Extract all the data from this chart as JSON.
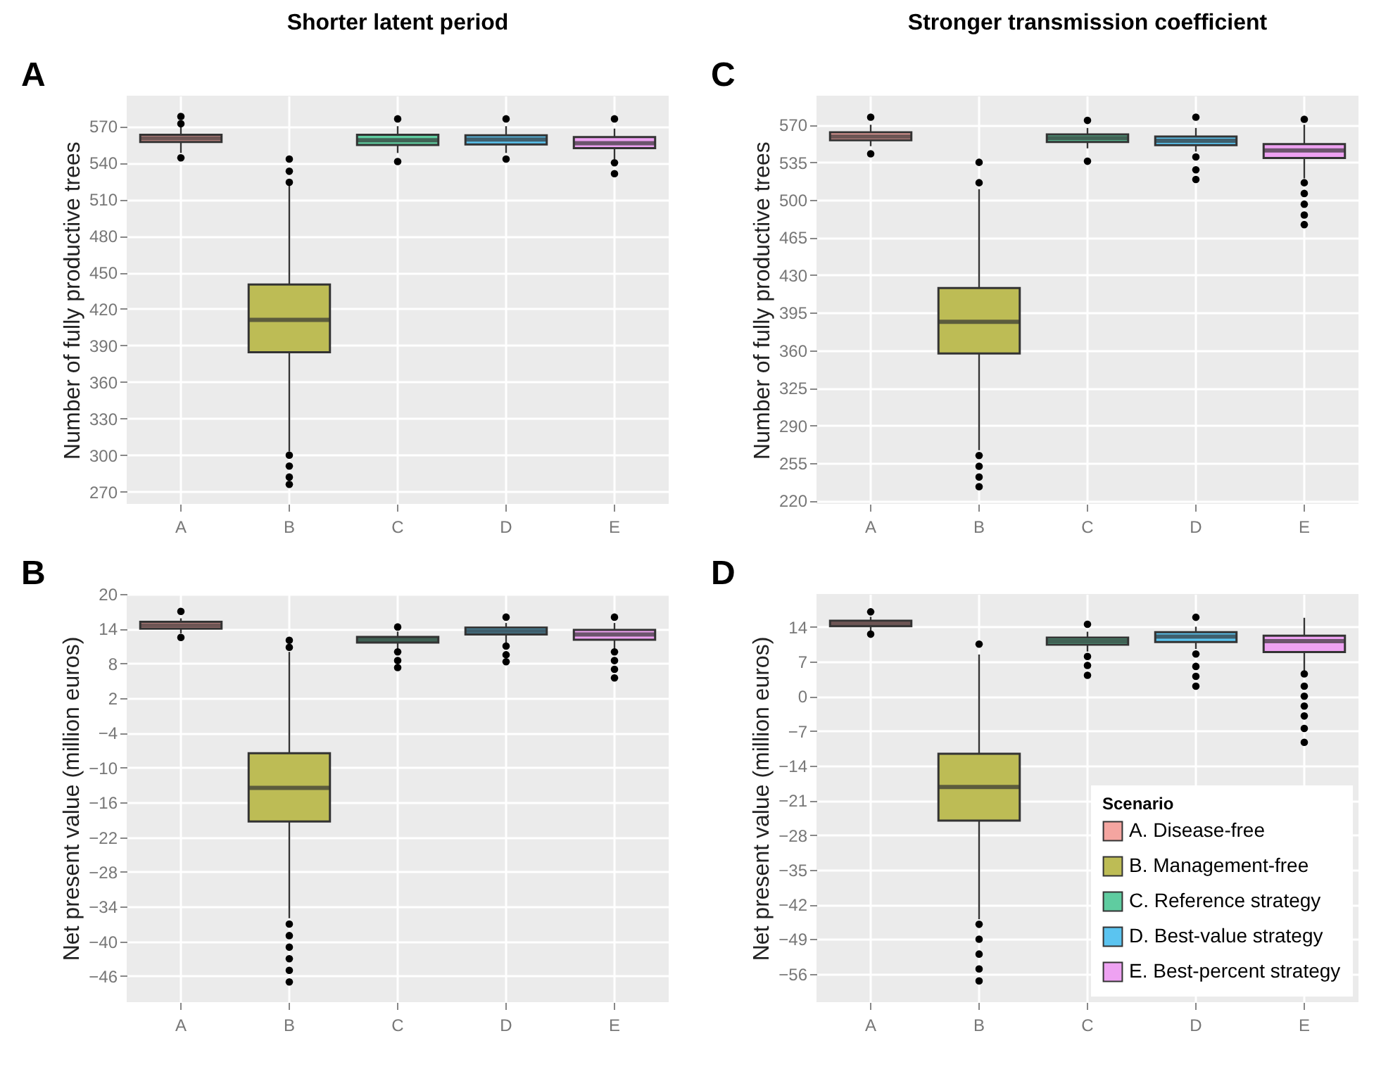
{
  "chart_data": [
    {
      "type": "box",
      "title": "Shorter latent period",
      "annotations": [
        "A"
      ],
      "ylabel": "Number of fully productive trees",
      "categories": [
        "A",
        "B",
        "C",
        "D",
        "E"
      ],
      "colors": [
        "#f4a5a0",
        "#bdbc55",
        "#5fcca0",
        "#5bc4f0",
        "#eea2f2"
      ],
      "ylim": [
        260,
        595
      ],
      "yticks": [
        270,
        300,
        330,
        360,
        390,
        420,
        450,
        480,
        510,
        540,
        570
      ],
      "grid": true,
      "legend": false,
      "boxes": [
        {
          "low": 548,
          "q1": 557,
          "median": 560,
          "q3": 563,
          "high": 570,
          "outliers": [
            544,
            572,
            578
          ]
        },
        {
          "low": 303,
          "q1": 384.5,
          "median": 411,
          "q3": 440,
          "high": 523,
          "outliers": [
            524,
            533,
            543,
            300,
            291,
            282,
            276
          ]
        },
        {
          "low": 548,
          "q1": 554.5,
          "median": 558.5,
          "q3": 563,
          "high": 570,
          "outliers": [
            576,
            541
          ]
        },
        {
          "low": 548,
          "q1": 555,
          "median": 559,
          "q3": 562.5,
          "high": 570,
          "outliers": [
            576,
            543
          ]
        },
        {
          "low": 543,
          "q1": 552,
          "median": 556,
          "q3": 561,
          "high": 568,
          "outliers": [
            576,
            540,
            531
          ]
        }
      ]
    },
    {
      "type": "box",
      "title": "Stronger transmission coefficient",
      "annotations": [
        "C"
      ],
      "ylabel": "Number of fully productive trees",
      "categories": [
        "A",
        "B",
        "C",
        "D",
        "E"
      ],
      "colors": [
        "#f4a5a0",
        "#bdbc55",
        "#5fcca0",
        "#5bc4f0",
        "#eea2f2"
      ],
      "ylim": [
        217,
        597
      ],
      "yticks": [
        220,
        255,
        290,
        325,
        360,
        395,
        430,
        465,
        500,
        535,
        570
      ],
      "grid": true,
      "legend": false,
      "boxes": [
        {
          "low": 550,
          "q1": 555.5,
          "median": 559,
          "q3": 563,
          "high": 570,
          "outliers": [
            577,
            543
          ]
        },
        {
          "low": 267,
          "q1": 357,
          "median": 386.5,
          "q3": 418,
          "high": 510,
          "outliers": [
            516,
            535,
            262,
            252,
            242,
            233
          ]
        },
        {
          "low": 548,
          "q1": 554,
          "median": 557.5,
          "q3": 561,
          "high": 567,
          "outliers": [
            574,
            536
          ]
        },
        {
          "low": 545,
          "q1": 551,
          "median": 555,
          "q3": 559,
          "high": 567,
          "outliers": [
            577,
            540,
            528,
            519
          ]
        },
        {
          "low": 520,
          "q1": 539,
          "median": 546,
          "q3": 552,
          "high": 570,
          "outliers": [
            575,
            516,
            506,
            496,
            486,
            477
          ]
        }
      ]
    },
    {
      "type": "box",
      "annotations": [
        "B"
      ],
      "ylabel": "Net present value (million euros)",
      "categories": [
        "A",
        "B",
        "C",
        "D",
        "E"
      ],
      "colors": [
        "#f4a5a0",
        "#bdbc55",
        "#5fcca0",
        "#5bc4f0",
        "#eea2f2"
      ],
      "ylim": [
        -50.5,
        20
      ],
      "yticks": [
        20,
        14,
        8,
        2,
        -4,
        -10,
        -16,
        -22,
        -28,
        -34,
        -40,
        -46
      ],
      "grid": true,
      "legend": false,
      "boxes": [
        {
          "low": 13.2,
          "q1": 14,
          "median": 14.6,
          "q3": 15.2,
          "high": 15.8,
          "outliers": [
            17,
            12.5
          ]
        },
        {
          "low": -36,
          "q1": -19.3,
          "median": -13.5,
          "q3": -7.5,
          "high": 10,
          "outliers": [
            10.8,
            12,
            -37,
            -39,
            -41,
            -43,
            -45,
            -47
          ]
        },
        {
          "low": 10.5,
          "q1": 11.6,
          "median": 12.1,
          "q3": 12.6,
          "high": 13.5,
          "outliers": [
            14.3,
            10,
            8.5,
            7.3
          ]
        },
        {
          "low": 11.5,
          "q1": 13,
          "median": 13.6,
          "q3": 14.2,
          "high": 15,
          "outliers": [
            16,
            11,
            9.5,
            8.3
          ]
        },
        {
          "low": 10.5,
          "q1": 12.1,
          "median": 13,
          "q3": 13.8,
          "high": 15,
          "outliers": [
            16,
            10,
            8.5,
            7,
            5.5
          ]
        }
      ]
    },
    {
      "type": "box",
      "annotations": [
        "D"
      ],
      "ylabel": "Net present value (million euros)",
      "legend_title": "Scenario",
      "categories": [
        "A",
        "B",
        "C",
        "D",
        "E"
      ],
      "ylim": [
        -61.7,
        20.6
      ],
      "yticks": [
        14,
        7,
        0,
        -7,
        -14,
        -21,
        -28,
        -35,
        -42,
        -49,
        -56
      ],
      "grid": true,
      "legend": "bottom right",
      "series": [
        {
          "name": "A. Disease-free",
          "color": "#f4a5a0",
          "boxes": [
            {
              "low": 13,
              "q1": 14.1,
              "median": 14.6,
              "q3": 15.2,
              "high": 16,
              "outliers": [
                17,
                12.5
              ]
            },
            null,
            null,
            null,
            null
          ]
        },
        {
          "name": "B. Management-free",
          "color": "#bdbc55",
          "boxes": [
            null,
            {
              "low": -45,
              "q1": -25.1,
              "median": -18.3,
              "q3": -11.6,
              "high": 8.4,
              "outliers": [
                10.5,
                -46,
                -49,
                -52,
                -55,
                -57.4
              ]
            },
            null,
            null,
            null
          ]
        },
        {
          "name": "C. Reference strategy",
          "color": "#5fcca0",
          "boxes": [
            null,
            null,
            {
              "low": 9,
              "q1": 10.4,
              "median": 11.1,
              "q3": 11.8,
              "high": 13,
              "outliers": [
                14.5,
                8,
                6.2,
                4.2
              ]
            },
            null,
            null
          ]
        },
        {
          "name": "D. Best-value strategy",
          "color": "#5bc4f0",
          "boxes": [
            null,
            null,
            null,
            {
              "low": 9.5,
              "q1": 10.9,
              "median": 12,
              "q3": 12.9,
              "high": 14,
              "outliers": [
                15.9,
                8.5,
                6,
                4,
                2
              ]
            },
            null
          ]
        },
        {
          "name": "E. Best-percent strategy",
          "color": "#eea2f2",
          "boxes": [
            null,
            null,
            null,
            null,
            {
              "low": 5,
              "q1": 8.9,
              "median": 11.1,
              "q3": 12.2,
              "high": 15.8,
              "outliers": [
                4.5,
                2,
                0,
                -2,
                -4,
                -6.5,
                -9.3
              ]
            }
          ]
        }
      ]
    }
  ]
}
